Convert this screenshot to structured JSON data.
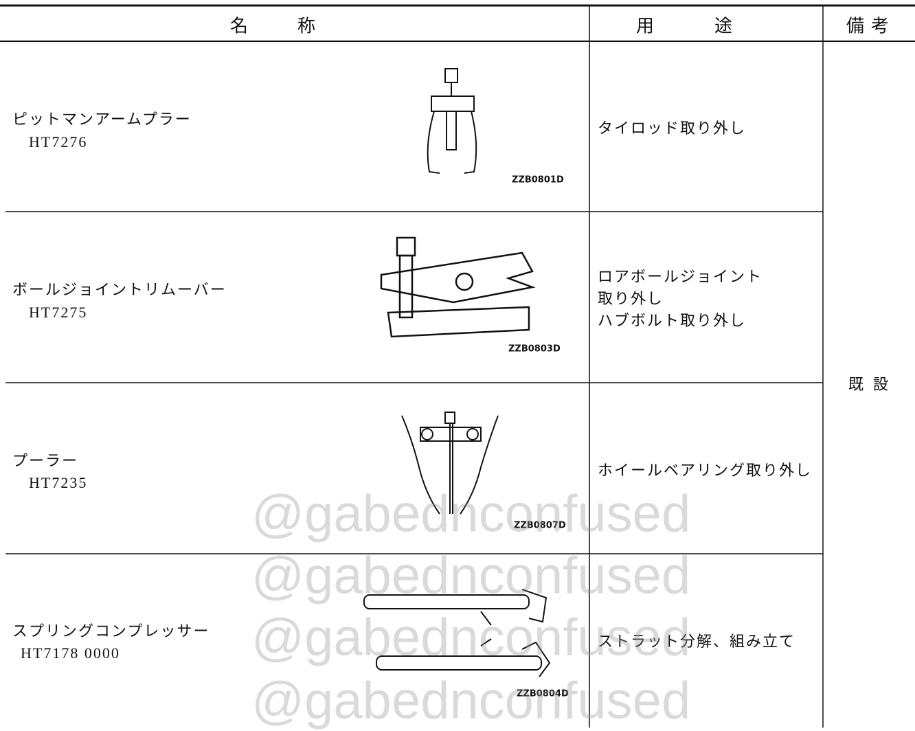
{
  "header": {
    "name": "名称",
    "usage": "用途",
    "notes": "備考"
  },
  "rows": [
    {
      "name": [
        "ピットマンアームプラー",
        "HT7276"
      ],
      "usage": [
        "タイロッド取り外し"
      ],
      "figure": "ZZB0801D"
    },
    {
      "name": [
        "ボールジョイントリムーバー",
        "HT7275"
      ],
      "usage": [
        "ロアボールジョイント",
        "取り外し",
        "ハブボルト取り外し"
      ],
      "figure": "ZZB0803D"
    },
    {
      "name": [
        "プーラー",
        "HT7235"
      ],
      "usage": [
        "ホイールベアリング取り外し"
      ],
      "figure": "ZZB0807D"
    },
    {
      "name": [
        "スプリングコンプレッサー",
        "HT7178 0000"
      ],
      "usage": [
        "ストラット分解、組み立て"
      ],
      "figure": "ZZB0804D"
    }
  ],
  "notes": "既設",
  "watermark": "@gabednconfused"
}
